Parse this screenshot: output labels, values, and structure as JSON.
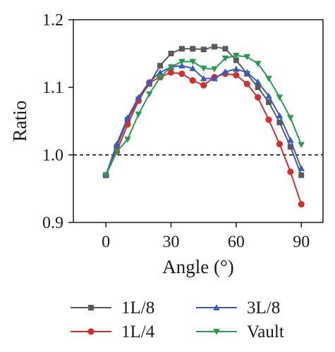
{
  "chart_data": {
    "type": "line",
    "xlabel": "Angle (°)",
    "ylabel": "Ratio",
    "xlim": [
      -15,
      100
    ],
    "ylim": [
      0.9,
      1.2
    ],
    "xticks": [
      0,
      30,
      60,
      90
    ],
    "yticks": [
      0.9,
      1.0,
      1.1,
      1.2
    ],
    "xtick_labels": [
      "0",
      "30",
      "60",
      "90"
    ],
    "ytick_labels": [
      "0.9",
      "1.0",
      "1.1",
      "1.2"
    ],
    "reference_line": {
      "y": 1.0,
      "style": "dashed",
      "color": "#000000"
    },
    "x": [
      0,
      5,
      10,
      15,
      20,
      25,
      30,
      35,
      40,
      45,
      50,
      55,
      60,
      65,
      70,
      75,
      80,
      85,
      90
    ],
    "legend": {
      "placement": "bottom",
      "columns": 2
    },
    "series": [
      {
        "name": "1L/8",
        "color": "#5a5a5a",
        "marker": "square",
        "values": [
          0.97,
          1.012,
          1.052,
          1.082,
          1.105,
          1.132,
          1.15,
          1.157,
          1.157,
          1.156,
          1.16,
          1.157,
          1.14,
          1.12,
          1.1,
          1.078,
          1.048,
          1.012,
          0.97
        ]
      },
      {
        "name": "1L/4",
        "color": "#d42f2f",
        "marker": "circle",
        "values": [
          0.97,
          1.005,
          1.045,
          1.08,
          1.107,
          1.115,
          1.122,
          1.12,
          1.11,
          1.103,
          1.115,
          1.12,
          1.118,
          1.105,
          1.085,
          1.052,
          1.016,
          0.975,
          0.927
        ]
      },
      {
        "name": "3L/8",
        "color": "#3a5bbf",
        "marker": "triangle-up",
        "values": [
          0.97,
          1.016,
          1.055,
          1.085,
          1.108,
          1.122,
          1.13,
          1.132,
          1.128,
          1.113,
          1.113,
          1.123,
          1.127,
          1.122,
          1.108,
          1.087,
          1.058,
          1.022,
          0.98
        ]
      },
      {
        "name": "Vault",
        "color": "#2a9a52",
        "marker": "triangle-down",
        "values": [
          0.97,
          1.005,
          1.023,
          1.06,
          1.09,
          1.115,
          1.13,
          1.138,
          1.138,
          1.128,
          1.127,
          1.143,
          1.147,
          1.145,
          1.135,
          1.113,
          1.085,
          1.055,
          1.015
        ]
      }
    ]
  }
}
